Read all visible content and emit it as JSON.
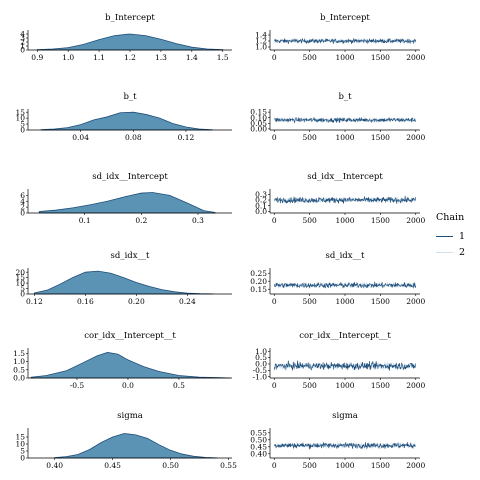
{
  "chart_data": [
    {
      "type": "area",
      "title": "b_Intercept",
      "ylim": [
        0,
        4.5
      ],
      "yticks": [
        "0",
        "1",
        "2",
        "3",
        "4"
      ],
      "xlim": [
        0.87,
        1.53
      ],
      "xticks": [
        "0.9",
        "1.0",
        "1.1",
        "1.2",
        "1.3",
        "1.4",
        "1.5"
      ],
      "x": [
        0.9,
        0.95,
        1.0,
        1.05,
        1.1,
        1.15,
        1.2,
        1.25,
        1.3,
        1.35,
        1.4,
        1.45,
        1.5
      ],
      "y": [
        0.1,
        0.25,
        0.6,
        1.4,
        2.6,
        3.6,
        4.0,
        3.6,
        2.7,
        1.6,
        0.7,
        0.25,
        0.1
      ]
    },
    {
      "type": "line",
      "title": "b_Intercept",
      "ylim": [
        0.9,
        1.5
      ],
      "yticks": [
        "1.0",
        "1.2",
        "1.4"
      ],
      "xlim": [
        -60,
        2060
      ],
      "xticks": [
        "0",
        "500",
        "1000",
        "1500",
        "2000"
      ],
      "trace_center": 1.2,
      "trace_spread": 0.13
    },
    {
      "type": "area",
      "title": "b_t",
      "ylim": [
        0,
        16
      ],
      "yticks": [
        "0",
        "5",
        "10",
        "15"
      ],
      "xlim": [
        0.0,
        0.155
      ],
      "xticks": [
        "0.04",
        "0.08",
        "0.12"
      ],
      "x": [
        0.01,
        0.02,
        0.03,
        0.04,
        0.05,
        0.06,
        0.07,
        0.08,
        0.09,
        0.1,
        0.11,
        0.12,
        0.13,
        0.14
      ],
      "y": [
        0.3,
        0.8,
        2.0,
        4.5,
        8.5,
        11.0,
        14.5,
        15.0,
        13.0,
        10.0,
        5.5,
        2.5,
        0.8,
        0.2
      ]
    },
    {
      "type": "line",
      "title": "b_t",
      "ylim": [
        -0.01,
        0.16
      ],
      "yticks": [
        "0.00",
        "0.05",
        "0.10",
        "0.15"
      ],
      "xlim": [
        -60,
        2060
      ],
      "xticks": [
        "0",
        "500",
        "1000",
        "1500",
        "2000"
      ],
      "trace_center": 0.08,
      "trace_spread": 0.035
    },
    {
      "type": "area",
      "title": "sd_idx__Intercept",
      "ylim": [
        0,
        7.5
      ],
      "yticks": [
        "0",
        "2",
        "4",
        "6"
      ],
      "xlim": [
        0.0,
        0.36
      ],
      "xticks": [
        "0.1",
        "0.2",
        "0.3"
      ],
      "x": [
        0.02,
        0.05,
        0.08,
        0.11,
        0.14,
        0.17,
        0.2,
        0.22,
        0.25,
        0.28,
        0.31,
        0.33
      ],
      "y": [
        0.5,
        1.0,
        1.8,
        2.8,
        4.0,
        5.5,
        6.8,
        7.0,
        6.0,
        3.5,
        0.8,
        0.2
      ]
    },
    {
      "type": "line",
      "title": "sd_idx__Intercept",
      "ylim": [
        -0.03,
        0.36
      ],
      "yticks": [
        "0.0",
        "0.1",
        "0.2",
        "0.3"
      ],
      "xlim": [
        -60,
        2060
      ],
      "xticks": [
        "0",
        "500",
        "1000",
        "1500",
        "2000"
      ],
      "trace_center": 0.2,
      "trace_spread": 0.09
    },
    {
      "type": "area",
      "title": "sd_idx__t",
      "ylim": [
        0,
        22
      ],
      "yticks": [
        "0",
        "5",
        "10",
        "15",
        "20"
      ],
      "xlim": [
        0.115,
        0.275
      ],
      "xticks": [
        "0.12",
        "0.16",
        "0.20",
        "0.24"
      ],
      "x": [
        0.12,
        0.13,
        0.14,
        0.15,
        0.16,
        0.17,
        0.18,
        0.19,
        0.2,
        0.21,
        0.22,
        0.23,
        0.24,
        0.25,
        0.26
      ],
      "y": [
        1.0,
        3.5,
        9.0,
        15.0,
        20.0,
        21.0,
        19.0,
        15.0,
        10.5,
        7.0,
        4.0,
        2.0,
        0.8,
        0.3,
        0.1
      ]
    },
    {
      "type": "line",
      "title": "sd_idx__t",
      "ylim": [
        0.12,
        0.27
      ],
      "yticks": [
        "0.15",
        "0.20",
        "0.25"
      ],
      "xlim": [
        -60,
        2060
      ],
      "xticks": [
        "0",
        "500",
        "1000",
        "1500",
        "2000"
      ],
      "trace_center": 0.175,
      "trace_spread": 0.03
    },
    {
      "type": "area",
      "title": "cor_idx__Intercept__t",
      "ylim": [
        0,
        1.7
      ],
      "yticks": [
        "0.0",
        "0.5",
        "1.0",
        "1.5"
      ],
      "xlim": [
        -0.98,
        1.02
      ],
      "xticks": [
        "-0.5",
        "0.0",
        "0.5"
      ],
      "x": [
        -0.95,
        -0.8,
        -0.6,
        -0.45,
        -0.3,
        -0.2,
        -0.1,
        0.0,
        0.15,
        0.3,
        0.5,
        0.7,
        0.9,
        1.0
      ],
      "y": [
        0.05,
        0.15,
        0.45,
        0.9,
        1.35,
        1.55,
        1.45,
        1.1,
        0.7,
        0.4,
        0.15,
        0.05,
        0.02,
        0.0
      ]
    },
    {
      "type": "line",
      "title": "cor_idx__Intercept__t",
      "ylim": [
        -1.1,
        1.1
      ],
      "yticks": [
        "-1.0",
        "-0.5",
        "0.0",
        "0.5",
        "1.0"
      ],
      "xlim": [
        -60,
        2060
      ],
      "xticks": [
        "0",
        "500",
        "1000",
        "1500",
        "2000"
      ],
      "trace_center": -0.15,
      "trace_spread": 0.5
    },
    {
      "type": "area",
      "title": "sigma",
      "ylim": [
        0,
        20
      ],
      "yticks": [
        "0",
        "5",
        "10",
        "15"
      ],
      "xlim": [
        0.377,
        0.553
      ],
      "xticks": [
        "0.40",
        "0.45",
        "0.50",
        "0.55"
      ],
      "x": [
        0.4,
        0.41,
        0.42,
        0.43,
        0.44,
        0.45,
        0.46,
        0.47,
        0.48,
        0.49,
        0.5,
        0.51,
        0.52,
        0.53,
        0.54
      ],
      "y": [
        0.3,
        1.0,
        2.5,
        6.0,
        11.0,
        15.0,
        17.5,
        16.5,
        14.0,
        9.5,
        5.5,
        2.8,
        1.2,
        0.4,
        0.1
      ]
    },
    {
      "type": "line",
      "title": "sigma",
      "ylim": [
        0.37,
        0.57
      ],
      "yticks": [
        "0.40",
        "0.45",
        "0.50",
        "0.55"
      ],
      "xlim": [
        -60,
        2060
      ],
      "xticks": [
        "0",
        "500",
        "1000",
        "1500",
        "2000"
      ],
      "trace_center": 0.46,
      "trace_spread": 0.035
    }
  ],
  "legend": {
    "title": "Chain",
    "items": [
      {
        "label": "1",
        "color": "#1f4e79"
      },
      {
        "label": "2",
        "color": "#cfe0ee"
      }
    ]
  },
  "colors": {
    "density_fill": "#5b93b5",
    "density_line": "#1f4e79",
    "chain_1": "#1f4e79",
    "chain_2": "#cfe0ee"
  }
}
